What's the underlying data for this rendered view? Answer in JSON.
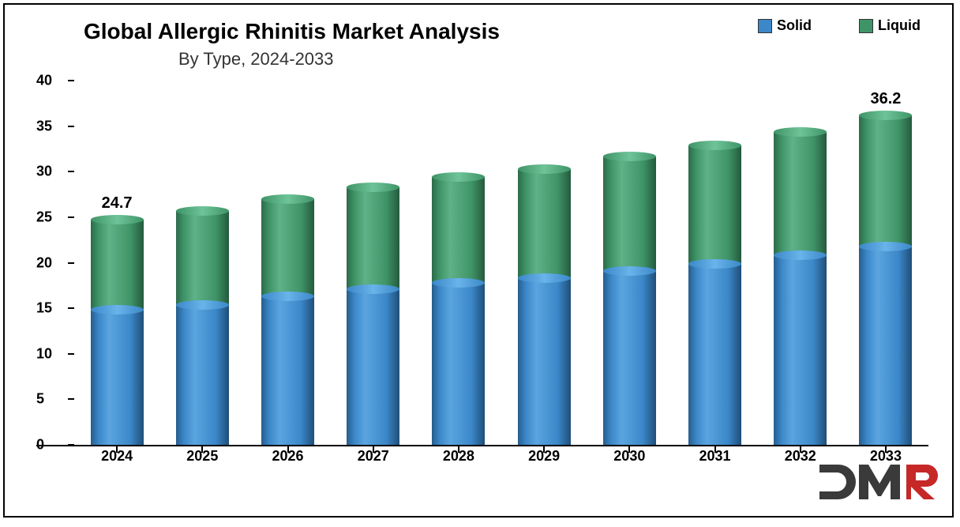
{
  "title": "Global Allergic Rhinitis Market Analysis",
  "title_fontsize": 28,
  "title_color": "#000000",
  "subtitle": "By Type, 2024-2033",
  "subtitle_fontsize": 22,
  "subtitle_color": "#333333",
  "chart": {
    "type": "stacked-bar",
    "background_color": "#ffffff",
    "axis_color": "#000000",
    "ylim": [
      0,
      40
    ],
    "ytick_step": 5,
    "ytick_labels": [
      "0",
      "5",
      "10",
      "15",
      "20",
      "25",
      "30",
      "35",
      "40"
    ],
    "ytick_fontsize": 18,
    "xtick_fontsize": 18,
    "bar_width_ratio": 0.62,
    "categories": [
      "2024",
      "2025",
      "2026",
      "2027",
      "2028",
      "2029",
      "2030",
      "2031",
      "2032",
      "2033"
    ],
    "series": [
      {
        "name": "Solid",
        "color": "#3b87c8",
        "values": [
          14.8,
          15.4,
          16.3,
          17.1,
          17.8,
          18.3,
          19.1,
          19.9,
          20.8,
          21.8
        ]
      },
      {
        "name": "Liquid",
        "color": "#3f9467",
        "values": [
          9.9,
          10.3,
          10.7,
          11.2,
          11.6,
          12.0,
          12.6,
          13.0,
          13.6,
          14.4
        ]
      }
    ],
    "totals": [
      24.7,
      25.7,
      27.0,
      28.3,
      29.4,
      30.3,
      31.7,
      32.9,
      34.4,
      36.2
    ],
    "value_labels": [
      {
        "index": 0,
        "text": "24.7"
      },
      {
        "index": 9,
        "text": "36.2"
      }
    ],
    "value_label_fontsize": 20
  },
  "legend": {
    "fontsize": 18,
    "items": [
      {
        "label": "Solid",
        "color": "#3b87c8"
      },
      {
        "label": "Liquid",
        "color": "#3f9467"
      }
    ]
  },
  "logo": {
    "text": "DMR",
    "d_color": "#3a3a3a",
    "m_color": "#3a3a3a",
    "r_color": "#c62828"
  }
}
